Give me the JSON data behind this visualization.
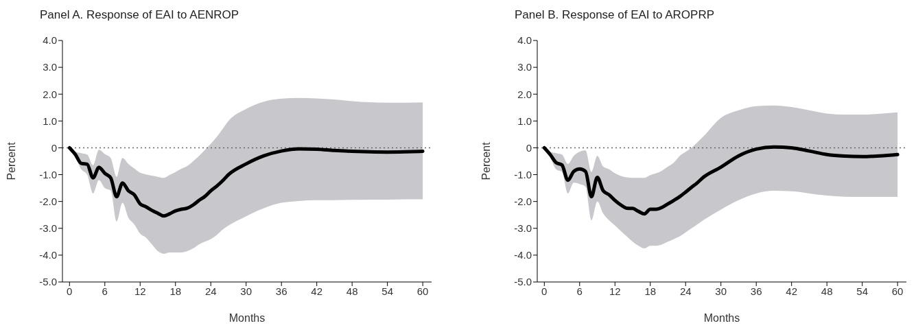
{
  "chart_data": [
    {
      "type": "line",
      "title": "Panel A. Response of EAI to AENROP",
      "xlabel": "Months",
      "ylabel": "Percent",
      "x": [
        0,
        1,
        2,
        3,
        4,
        5,
        6,
        7,
        8,
        9,
        10,
        11,
        12,
        13,
        14,
        15,
        16,
        17,
        18,
        19,
        20,
        21,
        22,
        23,
        24,
        25,
        26,
        27,
        30,
        33,
        36,
        39,
        42,
        45,
        48,
        51,
        54,
        57,
        60
      ],
      "series": [
        {
          "color": "#000000",
          "values": [
            0,
            -0.25,
            -0.58,
            -0.61,
            -1.12,
            -0.73,
            -0.95,
            -1.12,
            -1.82,
            -1.31,
            -1.6,
            -1.75,
            -2.09,
            -2.2,
            -2.33,
            -2.44,
            -2.54,
            -2.46,
            -2.35,
            -2.29,
            -2.25,
            -2.13,
            -1.96,
            -1.81,
            -1.6,
            -1.43,
            -1.23,
            -1.0,
            -0.6,
            -0.3,
            -0.12,
            -0.04,
            -0.05,
            -0.1,
            -0.13,
            -0.15,
            -0.16,
            -0.15,
            -0.13
          ],
          "lower": [
            0,
            -0.35,
            -0.8,
            -1.0,
            -1.7,
            -1.2,
            -1.5,
            -1.6,
            -2.75,
            -2.05,
            -2.6,
            -2.85,
            -3.2,
            -3.35,
            -3.6,
            -3.85,
            -3.95,
            -3.9,
            -3.9,
            -3.9,
            -3.85,
            -3.75,
            -3.6,
            -3.5,
            -3.4,
            -3.25,
            -3.05,
            -2.9,
            -2.55,
            -2.25,
            -2.05,
            -1.98,
            -1.95,
            -1.95,
            -1.94,
            -1.93,
            -1.93,
            -1.92,
            -1.92
          ],
          "upper": [
            0,
            -0.15,
            -0.2,
            -0.25,
            -0.65,
            -0.07,
            -0.23,
            -0.38,
            -1.08,
            -0.38,
            -0.6,
            -0.77,
            -0.93,
            -0.99,
            -1.04,
            -1.08,
            -1.12,
            -1.01,
            -0.9,
            -0.78,
            -0.68,
            -0.5,
            -0.3,
            -0.08,
            0.15,
            0.4,
            0.7,
            1.0,
            1.45,
            1.72,
            1.83,
            1.86,
            1.84,
            1.8,
            1.74,
            1.7,
            1.68,
            1.68,
            1.69
          ]
        }
      ],
      "xlim": [
        -1.2,
        61.5
      ],
      "xticks": [
        0,
        6,
        12,
        18,
        24,
        30,
        36,
        42,
        48,
        54,
        60
      ],
      "ylim": [
        -5,
        4
      ],
      "yticks": [
        {
          "value": -5,
          "label": "-5.0"
        },
        {
          "value": -4,
          "label": "-4.0"
        },
        {
          "value": -3,
          "label": "-3.0"
        },
        {
          "value": -2,
          "label": "-2.0"
        },
        {
          "value": -1,
          "label": "-1.0"
        },
        0,
        {
          "value": 1,
          "label": "1.0"
        },
        {
          "value": 2,
          "label": "2.0"
        },
        {
          "value": 3,
          "label": "3.0"
        },
        {
          "value": 4,
          "label": "4.0"
        }
      ],
      "ref_lines": [
        {
          "axis": "y",
          "value": 0,
          "color": "#666666",
          "line_style": "dotted"
        }
      ],
      "grid": false,
      "legend": false,
      "marker": "none",
      "line_style": "solid"
    },
    {
      "type": "line",
      "title": "Panel B. Response of EAI to AROPRP",
      "xlabel": "Months",
      "ylabel": "Percent",
      "x": [
        0,
        1,
        2,
        3,
        4,
        5,
        6,
        7,
        8,
        9,
        10,
        11,
        12,
        13,
        14,
        15,
        16,
        17,
        18,
        19,
        20,
        21,
        22,
        23,
        24,
        25,
        26,
        27,
        30,
        33,
        36,
        39,
        42,
        45,
        48,
        51,
        54,
        57,
        60
      ],
      "series": [
        {
          "color": "#000000",
          "values": [
            0,
            -0.25,
            -0.55,
            -0.64,
            -1.21,
            -0.88,
            -0.79,
            -0.88,
            -1.82,
            -1.1,
            -1.6,
            -1.75,
            -1.96,
            -2.13,
            -2.25,
            -2.26,
            -2.37,
            -2.46,
            -2.29,
            -2.29,
            -2.22,
            -2.09,
            -1.96,
            -1.82,
            -1.65,
            -1.47,
            -1.3,
            -1.1,
            -0.72,
            -0.3,
            -0.05,
            0.03,
            0,
            -0.12,
            -0.25,
            -0.31,
            -0.33,
            -0.3,
            -0.25
          ],
          "lower": [
            0,
            -0.35,
            -0.8,
            -0.9,
            -1.7,
            -1.3,
            -1.35,
            -1.45,
            -2.7,
            -2.0,
            -2.45,
            -2.7,
            -2.9,
            -3.1,
            -3.3,
            -3.5,
            -3.65,
            -3.75,
            -3.65,
            -3.65,
            -3.6,
            -3.5,
            -3.4,
            -3.3,
            -3.15,
            -3.0,
            -2.85,
            -2.7,
            -2.3,
            -1.95,
            -1.7,
            -1.6,
            -1.62,
            -1.7,
            -1.78,
            -1.82,
            -1.83,
            -1.83,
            -1.83
          ],
          "upper": [
            0,
            -0.15,
            -0.2,
            -0.25,
            -0.6,
            -0.3,
            -0.15,
            -0.1,
            -0.9,
            -0.3,
            -0.7,
            -0.8,
            -0.95,
            -1.05,
            -1.1,
            -1.12,
            -1.12,
            -1.12,
            -1.02,
            -0.95,
            -0.85,
            -0.7,
            -0.55,
            -0.3,
            -0.15,
            0,
            0.2,
            0.42,
            1.12,
            1.4,
            1.55,
            1.58,
            1.52,
            1.4,
            1.28,
            1.24,
            1.24,
            1.27,
            1.32
          ]
        }
      ],
      "xlim": [
        -1.2,
        61.5
      ],
      "xticks": [
        0,
        6,
        12,
        18,
        24,
        30,
        36,
        42,
        48,
        54,
        60
      ],
      "ylim": [
        -5,
        4
      ],
      "yticks": [
        {
          "value": -5,
          "label": "-5.0"
        },
        {
          "value": -4,
          "label": "-4.0"
        },
        {
          "value": -3,
          "label": "-3.0"
        },
        {
          "value": -2,
          "label": "-2.0"
        },
        {
          "value": -1,
          "label": "-1.0"
        },
        0,
        {
          "value": 1,
          "label": "1.0"
        },
        {
          "value": 2,
          "label": "2.0"
        },
        {
          "value": 3,
          "label": "3.0"
        },
        {
          "value": 4,
          "label": "4.0"
        }
      ],
      "ref_lines": [
        {
          "axis": "y",
          "value": 0,
          "color": "#666666",
          "line_style": "dotted"
        }
      ],
      "grid": false,
      "legend": false,
      "marker": "none",
      "line_style": "solid"
    }
  ]
}
